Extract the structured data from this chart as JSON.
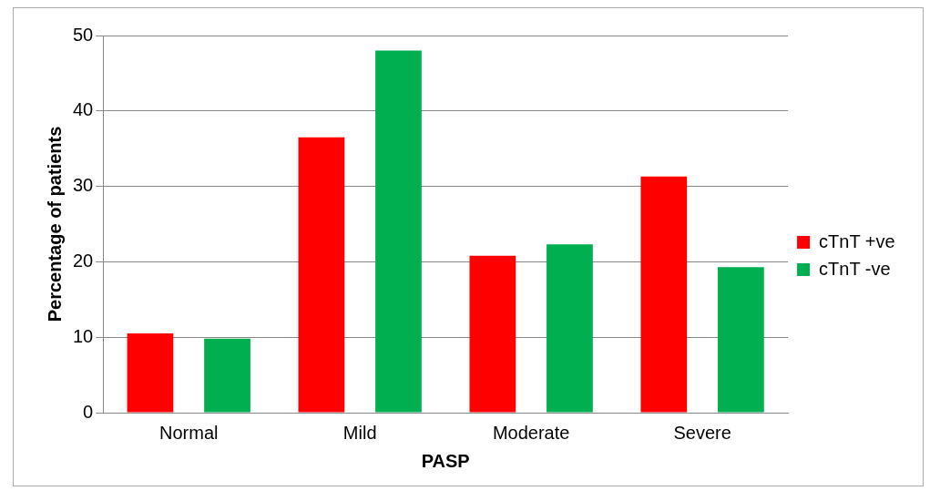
{
  "chart_data": {
    "type": "bar",
    "xlabel": "PASP",
    "ylabel": "Percentage of patients",
    "categories": [
      "Normal",
      "Mild",
      "Moderate",
      "Severe"
    ],
    "series": [
      {
        "name": "cTnT +ve",
        "color": "#ff0000",
        "values": [
          10.5,
          36.5,
          20.8,
          31.3
        ]
      },
      {
        "name": "cTnT -ve",
        "color": "#00b050",
        "values": [
          9.8,
          48,
          22.3,
          19.3
        ]
      }
    ],
    "ylim": [
      0,
      50
    ],
    "yticks": [
      0,
      10,
      20,
      30,
      40,
      50
    ],
    "grid": "y",
    "legend": "right"
  }
}
